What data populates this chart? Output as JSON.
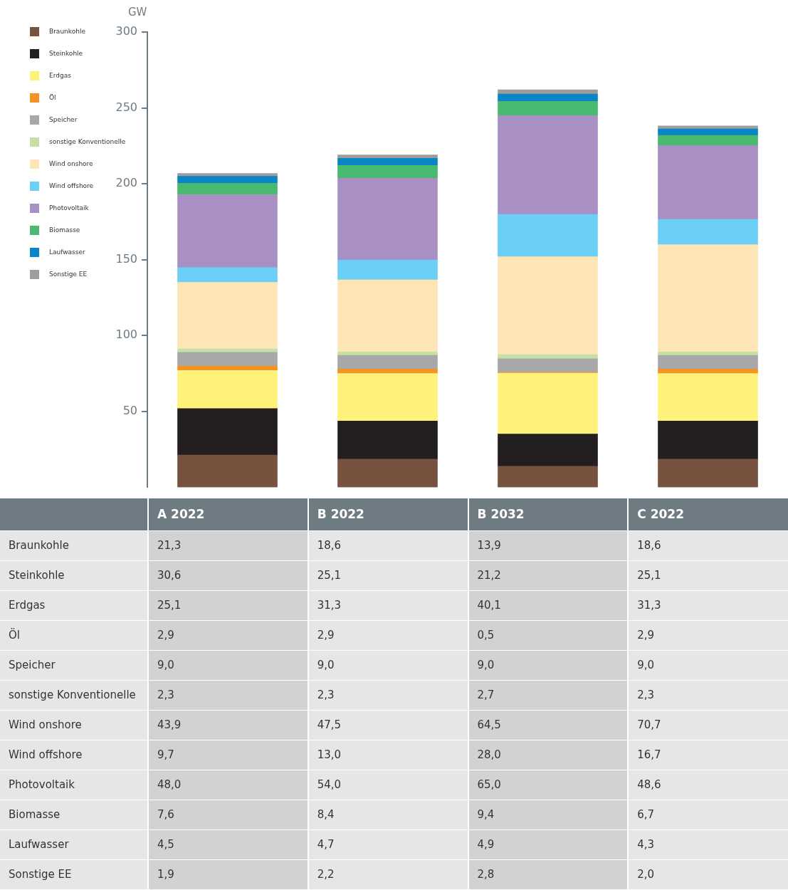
{
  "chart_data": {
    "type": "bar",
    "stacked": true,
    "ylabel": "GW",
    "categories": [
      "A 2022",
      "B 2022",
      "B 2032",
      "C 2022"
    ],
    "series": [
      {
        "name": "Braunkohle",
        "color": "#76523f",
        "values": [
          21.3,
          18.6,
          13.9,
          18.6
        ],
        "value_labels": [
          "21,3",
          "18,6",
          "13,9",
          "18,6"
        ]
      },
      {
        "name": "Steinkohle",
        "color": "#231f20",
        "values": [
          30.6,
          25.1,
          21.2,
          25.1
        ],
        "value_labels": [
          "30,6",
          "25,1",
          "21,2",
          "25,1"
        ]
      },
      {
        "name": "Erdgas",
        "color": "#fff27a",
        "values": [
          25.1,
          31.3,
          40.1,
          31.3
        ],
        "value_labels": [
          "25,1",
          "31,3",
          "40,1",
          "31,3"
        ]
      },
      {
        "name": "Öl",
        "color": "#f39325",
        "values": [
          2.9,
          2.9,
          0.5,
          2.9
        ],
        "value_labels": [
          "2,9",
          "2,9",
          "0,5",
          "2,9"
        ]
      },
      {
        "name": "Speicher",
        "color": "#a8a8aa",
        "values": [
          9.0,
          9.0,
          9.0,
          9.0
        ],
        "value_labels": [
          "9,0",
          "9,0",
          "9,0",
          "9,0"
        ]
      },
      {
        "name": "sonstige Konventionelle",
        "color": "#c4e0a6",
        "values": [
          2.3,
          2.3,
          2.7,
          2.3
        ],
        "value_labels": [
          "2,3",
          "2,3",
          "2,7",
          "2,3"
        ]
      },
      {
        "name": "Wind onshore",
        "color": "#fde5b6",
        "values": [
          43.9,
          47.5,
          64.5,
          70.7
        ],
        "value_labels": [
          "43,9",
          "47,5",
          "64,5",
          "70,7"
        ]
      },
      {
        "name": "Wind offshore",
        "color": "#6ccff6",
        "values": [
          9.7,
          13.0,
          28.0,
          16.7
        ],
        "value_labels": [
          "9,7",
          "13,0",
          "28,0",
          "16,7"
        ]
      },
      {
        "name": "Photovoltaik",
        "color": "#a890c4",
        "values": [
          48.0,
          54.0,
          65.0,
          48.6
        ],
        "value_labels": [
          "48,0",
          "54,0",
          "65,0",
          "48,6"
        ]
      },
      {
        "name": "Biomasse",
        "color": "#48b96f",
        "values": [
          7.6,
          8.4,
          9.4,
          6.7
        ],
        "value_labels": [
          "7,6",
          "8,4",
          "9,4",
          "6,7"
        ]
      },
      {
        "name": "Laufwasser",
        "color": "#0a85c6",
        "values": [
          4.5,
          4.7,
          4.9,
          4.3
        ],
        "value_labels": [
          "4,5",
          "4,7",
          "4,9",
          "4,3"
        ]
      },
      {
        "name": "Sonstige EE",
        "color": "#9d9d9d",
        "values": [
          1.9,
          2.2,
          2.8,
          2.0
        ],
        "value_labels": [
          "1,9",
          "2,2",
          "2,8",
          "2,0"
        ]
      }
    ],
    "ylim": [
      0,
      300
    ],
    "yticks": [
      50,
      100,
      150,
      200,
      250,
      300
    ],
    "grid": false,
    "legend": "left"
  }
}
